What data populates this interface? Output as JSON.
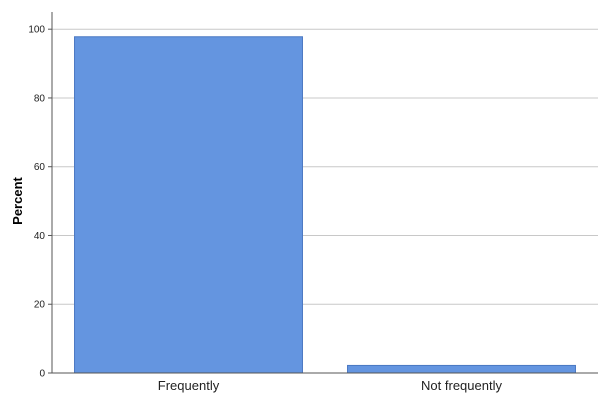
{
  "chart_data": {
    "type": "bar",
    "title": "",
    "xlabel": "",
    "ylabel": "Percent",
    "categories": [
      "Frequently",
      "Not frequently"
    ],
    "values": [
      97.8,
      2.2
    ],
    "ylim": [
      0,
      105
    ],
    "yticks": [
      0,
      20,
      40,
      60,
      80,
      100
    ],
    "grid": "horizontal",
    "legend": "none",
    "colors": {
      "bar": "#6495e0",
      "bar_stroke": "#4a78c2",
      "grid": "#c8c8c8",
      "axis": "#555555",
      "background": "#ffffff"
    }
  }
}
